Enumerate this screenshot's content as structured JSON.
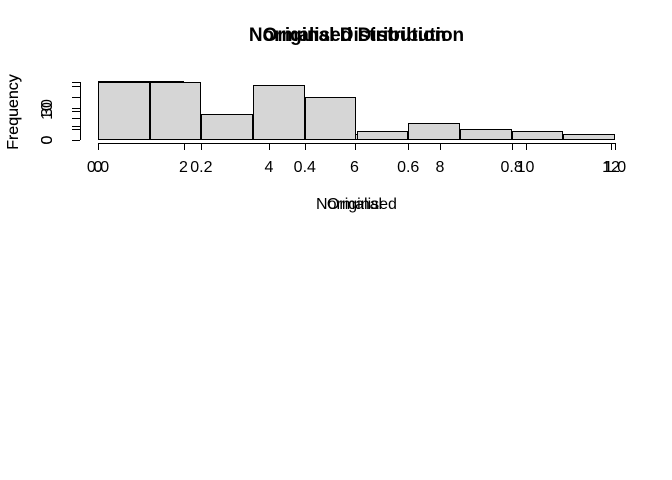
{
  "figure": {
    "background": "#ffffff",
    "colors": {
      "bar_fill": "#d6d6d6",
      "bar_border": "#000000",
      "axis": "#000000",
      "text": "#000000"
    }
  },
  "chart_data": [
    {
      "type": "bar",
      "title": "Original Distribution",
      "xlabel": "Original",
      "ylabel": "Frequency",
      "bin_start": 0,
      "bin_width": 2,
      "counts": [
        55,
        14,
        6,
        6,
        5,
        2
      ],
      "xlim": [
        0,
        12
      ],
      "ylim": [
        0,
        50
      ],
      "grid": false,
      "legend": false,
      "x_ticks": [
        {
          "v": 0,
          "label": "0"
        },
        {
          "v": 2,
          "label": "2"
        },
        {
          "v": 4,
          "label": "4"
        },
        {
          "v": 6,
          "label": "6"
        },
        {
          "v": 8,
          "label": "8"
        },
        {
          "v": 10,
          "label": "10"
        },
        {
          "v": 12,
          "label": "12"
        }
      ],
      "y_ticks": [
        {
          "v": 0,
          "label": "0"
        },
        {
          "v": 10,
          "label": ""
        },
        {
          "v": 20,
          "label": ""
        },
        {
          "v": 30,
          "label": "30"
        },
        {
          "v": 40,
          "label": ""
        },
        {
          "v": 50,
          "label": ""
        }
      ]
    },
    {
      "type": "bar",
      "title": "Normalised Distribution",
      "xlabel": "Normalised",
      "ylabel": "Frequency",
      "bin_start": 0,
      "bin_width": 0.1,
      "counts": [
        20,
        20,
        9,
        19,
        15,
        3,
        6,
        4,
        3,
        2
      ],
      "xlim": [
        0,
        1
      ],
      "ylim": [
        0,
        20
      ],
      "grid": false,
      "legend": false,
      "x_ticks": [
        {
          "v": 0.0,
          "label": "0.0"
        },
        {
          "v": 0.2,
          "label": "0.2"
        },
        {
          "v": 0.4,
          "label": "0.4"
        },
        {
          "v": 0.6,
          "label": "0.6"
        },
        {
          "v": 0.8,
          "label": "0.8"
        },
        {
          "v": 1.0,
          "label": "1.0"
        }
      ],
      "y_ticks": [
        {
          "v": 0,
          "label": "0"
        },
        {
          "v": 5,
          "label": ""
        },
        {
          "v": 10,
          "label": "10"
        },
        {
          "v": 15,
          "label": ""
        },
        {
          "v": 20,
          "label": ""
        }
      ]
    }
  ]
}
